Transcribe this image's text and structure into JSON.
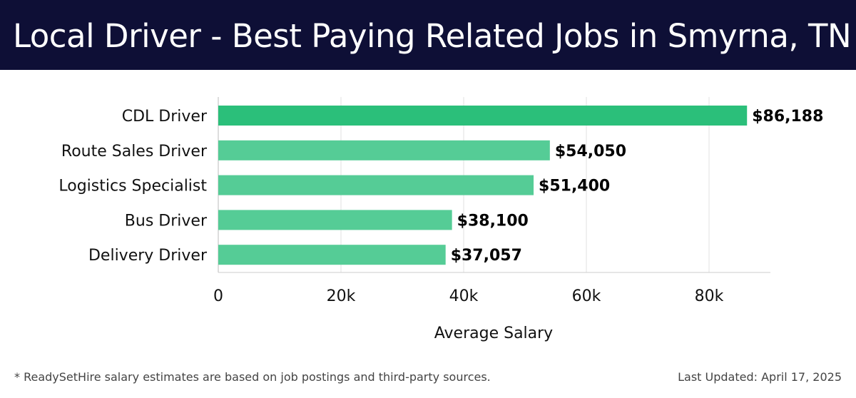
{
  "header": {
    "title": "Local Driver - Best Paying Related Jobs in Smyrna, TN"
  },
  "footer": {
    "note": "* ReadySetHire salary estimates are based on job postings and third-party sources.",
    "updated": "Last Updated: April 17, 2025"
  },
  "chart_data": {
    "type": "bar",
    "orientation": "horizontal",
    "categories": [
      "CDL Driver",
      "Route Sales Driver",
      "Logistics Specialist",
      "Bus Driver",
      "Delivery Driver"
    ],
    "values": [
      86188,
      54050,
      51400,
      38100,
      37057
    ],
    "value_labels": [
      "$86,188",
      "$54,050",
      "$51,400",
      "$38,100",
      "$37,057"
    ],
    "xlabel": "Average Salary",
    "ylabel": "",
    "xlim": [
      0,
      90000
    ],
    "xticks": [
      0,
      20000,
      40000,
      60000,
      80000
    ],
    "xtick_labels": [
      "0",
      "20k",
      "40k",
      "60k",
      "80k"
    ],
    "grid": true,
    "colors": {
      "top_bar": "#2bbf7a",
      "bar": "#55cc96"
    }
  }
}
